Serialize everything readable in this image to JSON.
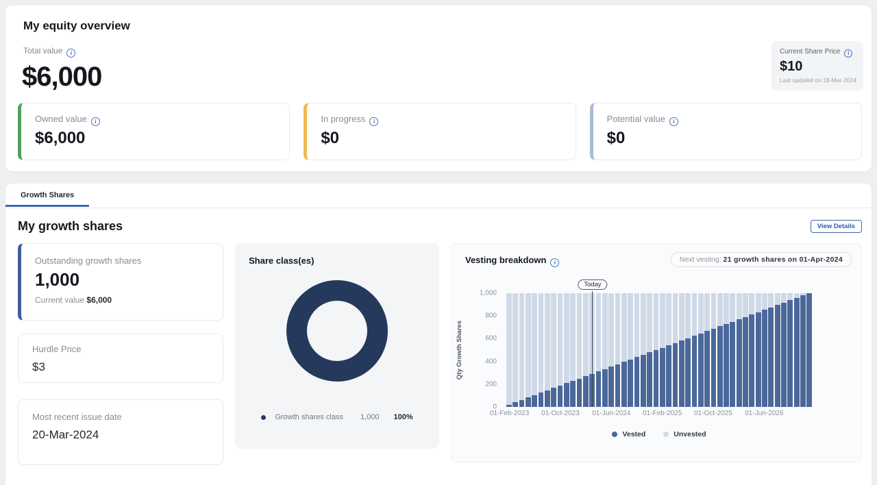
{
  "colors": {
    "accent_blue": "#3e68ad",
    "owned_accent": "#53a15d",
    "in_progress_accent": "#ecba52",
    "potential_accent": "#a9bcd9",
    "outstanding_accent": "#3f5e9b",
    "donut": "#24395c",
    "vested": "#4a689a",
    "unvested": "#cfd9e8"
  },
  "overview": {
    "title": "My equity overview",
    "total_value_label": "Total value",
    "total_value": "$6,000",
    "share_price_card": {
      "label": "Current Share Price",
      "value": "$10",
      "updated": "Last updated on 18-Mar-2024"
    },
    "cards": [
      {
        "label": "Owned value",
        "value": "$6,000",
        "accent": "#53a15d"
      },
      {
        "label": "In progress",
        "value": "$0",
        "accent": "#ecba52"
      },
      {
        "label": "Potential value",
        "value": "$0",
        "accent": "#a9bcd9"
      }
    ]
  },
  "growth": {
    "tab": "Growth Shares",
    "title": "My growth shares",
    "view_details": "View Details",
    "outstanding_card": {
      "label": "Outstanding growth shares",
      "value": "1,000",
      "current_value_label": "Current value",
      "current_value": "$6,000",
      "accent": "#3f5e9b"
    },
    "hurdle_card": {
      "label": "Hurdle Price",
      "value": "$3"
    },
    "issue_date_card": {
      "label": "Most recent issue date",
      "value": "20-Mar-2024"
    }
  },
  "chart_data": [
    {
      "type": "pie",
      "donut": true,
      "title": "Share class(es)",
      "labels": [
        "Growth shares class"
      ],
      "values": [
        1000
      ],
      "percentages": [
        100
      ],
      "color": "#24395c",
      "legend": {
        "name": "Growth shares class",
        "qty": "1,000",
        "pct": "100%"
      }
    },
    {
      "type": "bar",
      "stacked": true,
      "title": "Vesting breakdown",
      "next_vesting_prefix": "Next vesting:",
      "next_vesting_value": "21 growth shares on 01-Apr-2024",
      "today_label": "Today",
      "today_index": 13,
      "ylabel": "Qty Growth Shares",
      "ylim": [
        0,
        1000
      ],
      "yticks": [
        0,
        200,
        400,
        600,
        800,
        1000
      ],
      "ytick_labels": [
        "0",
        "200",
        "400",
        "600",
        "800",
        "1,000"
      ],
      "x_months": 48,
      "x_start": "01-Feb-2023",
      "x_tick_positions": [
        0,
        8,
        16,
        24,
        32,
        40
      ],
      "x_tick_labels": [
        "01-Feb-2023",
        "01-Oct-2023",
        "01-Jun-2024",
        "01-Feb-2025",
        "01-Oct-2025",
        "01-Jun-2026"
      ],
      "legend_position": "bottom",
      "series": [
        {
          "name": "Vested",
          "color": "#4a689a",
          "values": [
            21,
            42,
            63,
            83,
            104,
            125,
            146,
            167,
            188,
            208,
            229,
            250,
            271,
            292,
            313,
            333,
            354,
            375,
            396,
            417,
            438,
            458,
            479,
            500,
            521,
            542,
            563,
            583,
            604,
            625,
            646,
            667,
            688,
            708,
            729,
            750,
            771,
            792,
            813,
            833,
            854,
            875,
            896,
            917,
            938,
            958,
            979,
            1000
          ]
        },
        {
          "name": "Unvested",
          "color": "#cfd9e8",
          "values": [
            979,
            958,
            937,
            917,
            896,
            875,
            854,
            833,
            812,
            792,
            771,
            750,
            729,
            708,
            687,
            667,
            646,
            625,
            604,
            583,
            562,
            542,
            521,
            500,
            479,
            458,
            437,
            417,
            396,
            375,
            354,
            333,
            312,
            292,
            271,
            250,
            229,
            208,
            187,
            167,
            146,
            125,
            104,
            83,
            62,
            42,
            21,
            0
          ]
        }
      ]
    }
  ]
}
